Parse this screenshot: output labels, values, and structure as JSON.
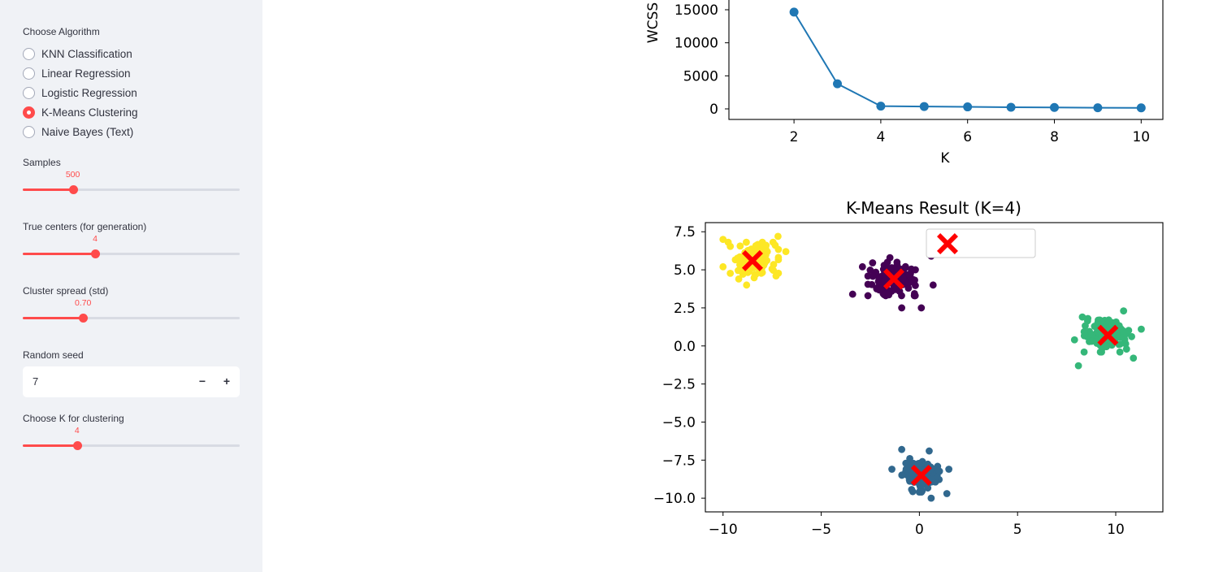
{
  "sidebar": {
    "algo_label": "Choose Algorithm",
    "algorithms": [
      {
        "label": "KNN Classification",
        "selected": false
      },
      {
        "label": "Linear Regression",
        "selected": false
      },
      {
        "label": "Logistic Regression",
        "selected": false
      },
      {
        "label": "K-Means Clustering",
        "selected": true
      },
      {
        "label": "Naive Bayes (Text)",
        "selected": false
      }
    ],
    "samples": {
      "label": "Samples",
      "value": "500",
      "min": 50,
      "max": 2000,
      "num": 500
    },
    "true_centers": {
      "label": "True centers (for generation)",
      "value": "4",
      "min": 2,
      "max": 8,
      "num": 4
    },
    "cluster_spread": {
      "label": "Cluster spread (std)",
      "value": "0.70",
      "min": 0.2,
      "max": 2.0,
      "num": 0.7
    },
    "random_seed": {
      "label": "Random seed",
      "value": "7",
      "minus": "−",
      "plus": "+"
    },
    "choose_k": {
      "label": "Choose K for clustering",
      "value": "4",
      "min": 2,
      "max": 10,
      "num": 4
    },
    "accent": "#ff4b4b"
  },
  "chart_data": [
    {
      "type": "line",
      "title": "",
      "xlabel": "K",
      "ylabel": "WCSS",
      "x": [
        2,
        3,
        4,
        5,
        6,
        7,
        8,
        9,
        10
      ],
      "y": [
        14650,
        3800,
        420,
        360,
        300,
        250,
        210,
        175,
        150
      ],
      "x_ticks": [
        "2",
        "4",
        "6",
        "8",
        "10"
      ],
      "y_ticks": [
        "0",
        "5000",
        "10000",
        "15000"
      ],
      "xlim": [
        0.5,
        10.5
      ],
      "color": "#1f77b4"
    },
    {
      "type": "scatter",
      "title": "K-Means Result (K=4)",
      "xlim": [
        -10.9,
        12.4
      ],
      "ylim": [
        -10.9,
        8.1
      ],
      "x_ticks": [
        "−10",
        "−5",
        "0",
        "5",
        "10"
      ],
      "y_ticks": [
        "7.5",
        "5.0",
        "2.5",
        "0.0",
        "−2.5",
        "−5.0",
        "−7.5",
        "−10.0"
      ],
      "legend": "centers",
      "clusters": [
        {
          "color": "#fde725",
          "center": [
            -8.5,
            5.6
          ],
          "spread": [
            0.6,
            0.55
          ],
          "outliers": [
            [
              -10.0,
              7.0
            ],
            [
              -7.2,
              7.2
            ],
            [
              -6.8,
              6.2
            ],
            [
              -7.3,
              4.6
            ],
            [
              -10.0,
              5.2
            ],
            [
              -9.2,
              4.4
            ],
            [
              -8.8,
              4.0
            ]
          ]
        },
        {
          "color": "#440154",
          "center": [
            -1.3,
            4.4
          ],
          "spread": [
            0.6,
            0.5
          ],
          "outliers": [
            [
              -3.4,
              3.4
            ],
            [
              0.6,
              5.9
            ],
            [
              0.7,
              4.0
            ],
            [
              -2.9,
              5.2
            ],
            [
              0.1,
              2.5
            ],
            [
              -0.9,
              2.5
            ],
            [
              -1.5,
              5.8
            ]
          ]
        },
        {
          "color": "#35b779",
          "center": [
            9.6,
            0.7
          ],
          "spread": [
            0.55,
            0.5
          ],
          "outliers": [
            [
              8.1,
              -1.3
            ],
            [
              10.9,
              -0.8
            ],
            [
              11.3,
              1.1
            ],
            [
              8.3,
              1.9
            ],
            [
              10.4,
              2.3
            ],
            [
              7.9,
              0.4
            ]
          ]
        },
        {
          "color": "#31688e",
          "center": [
            0.1,
            -8.5
          ],
          "spread": [
            0.45,
            0.5
          ],
          "outliers": [
            [
              -0.9,
              -6.8
            ],
            [
              0.6,
              -10.0
            ],
            [
              1.4,
              -9.7
            ],
            [
              -1.4,
              -8.1
            ],
            [
              1.5,
              -8.1
            ],
            [
              0.5,
              -6.9
            ]
          ]
        }
      ],
      "centers": [
        [
          -8.5,
          5.6
        ],
        [
          -1.3,
          4.4
        ],
        [
          9.6,
          0.7
        ],
        [
          0.1,
          -8.5
        ]
      ],
      "points_per_cluster": 125,
      "center_color": "#ff0000"
    }
  ]
}
